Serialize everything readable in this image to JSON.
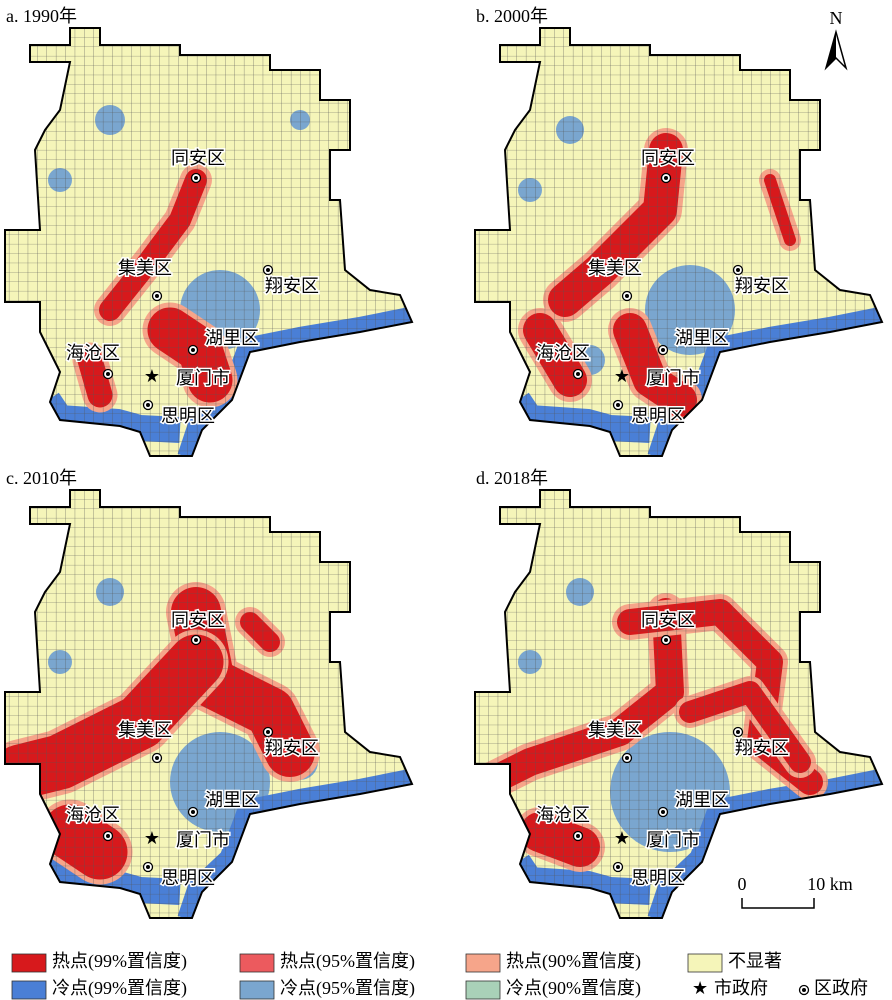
{
  "panels": [
    {
      "title": "a. 1990年",
      "places": [
        {
          "label": "同安区"
        },
        {
          "label": "集美区"
        },
        {
          "label": "翔安区"
        },
        {
          "label": "湖里区"
        },
        {
          "label": "海沧区"
        },
        {
          "label": "厦门市"
        },
        {
          "label": "思明区"
        }
      ]
    },
    {
      "title": "b. 2000年",
      "places": [
        {
          "label": "同安区"
        },
        {
          "label": "集美区"
        },
        {
          "label": "翔安区"
        },
        {
          "label": "湖里区"
        },
        {
          "label": "海沧区"
        },
        {
          "label": "厦门市"
        },
        {
          "label": "思明区"
        }
      ]
    },
    {
      "title": "c. 2010年",
      "places": [
        {
          "label": "同安区"
        },
        {
          "label": "集美区"
        },
        {
          "label": "翔安区"
        },
        {
          "label": "湖里区"
        },
        {
          "label": "海沧区"
        },
        {
          "label": "厦门市"
        },
        {
          "label": "思明区"
        }
      ]
    },
    {
      "title": "d. 2018年",
      "places": [
        {
          "label": "同安区"
        },
        {
          "label": "集美区"
        },
        {
          "label": "翔安区"
        },
        {
          "label": "湖里区"
        },
        {
          "label": "海沧区"
        },
        {
          "label": "厦门市"
        },
        {
          "label": "思明区"
        }
      ]
    }
  ],
  "north": "N",
  "scale": {
    "start": "0",
    "end": "10 km"
  },
  "legend": [
    {
      "label": "热点(99%置信度)",
      "color": "#d7191c"
    },
    {
      "label": "热点(95%置信度)",
      "color": "#ec5a5e"
    },
    {
      "label": "热点(90%置信度)",
      "color": "#f6a58a"
    },
    {
      "label": "不显著",
      "color": "#f5f5b9"
    },
    {
      "label": "冷点(99%置信度)",
      "color": "#4a7fd6"
    },
    {
      "label": "冷点(95%置信度)",
      "color": "#7aa6cf"
    },
    {
      "label": "冷点(90%置信度)",
      "color": "#a9d1b8"
    },
    {
      "label": "市政府"
    },
    {
      "label": "区政府"
    }
  ]
}
